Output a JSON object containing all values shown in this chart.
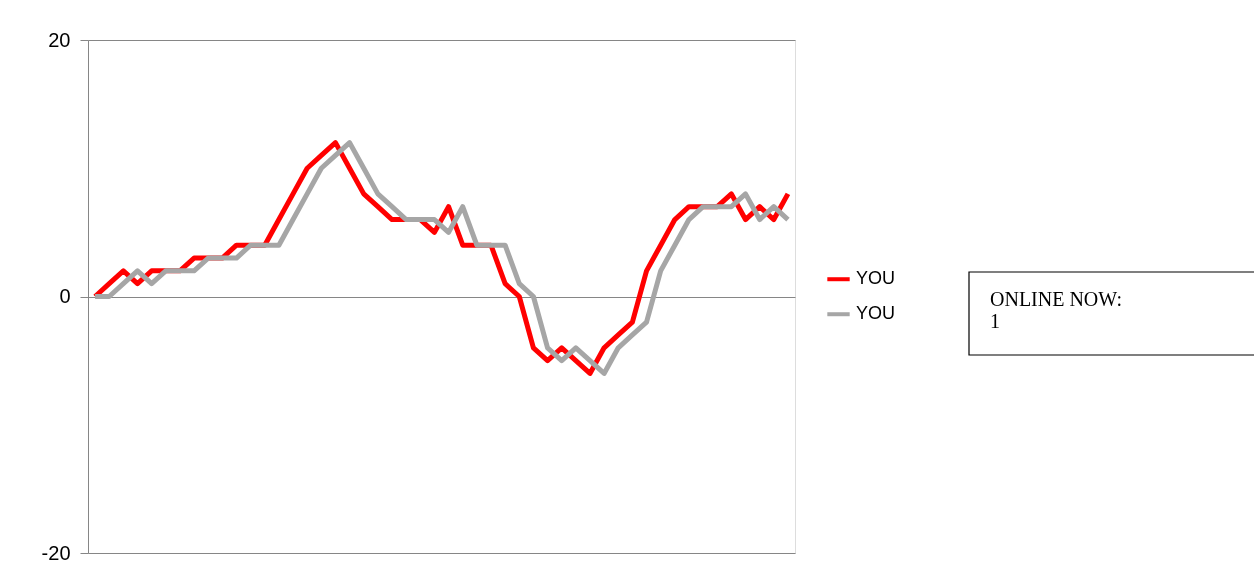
{
  "chart_data": {
    "type": "line",
    "categories": [
      null,
      null,
      null,
      null,
      null,
      null,
      null,
      null,
      null,
      null,
      null,
      null,
      null,
      null,
      null,
      null,
      null,
      null,
      null,
      null,
      null,
      null,
      null,
      null,
      null,
      null,
      null,
      null,
      null,
      null,
      null,
      null,
      null,
      null,
      null,
      null,
      null,
      null,
      null,
      null,
      null,
      null,
      null,
      null,
      null,
      null,
      null,
      null,
      null,
      null
    ],
    "series": [
      {
        "name": "YOU",
        "color": "#ff0000",
        "values": [
          0,
          1,
          2,
          1,
          2,
          2,
          2,
          3,
          3,
          3,
          4,
          4,
          4,
          6,
          8,
          10,
          11,
          12,
          10,
          8,
          7,
          6,
          6,
          6,
          5,
          7,
          4,
          4,
          4,
          1,
          0,
          -4,
          -5,
          -4,
          -5,
          -6,
          -4,
          -3,
          -2,
          2,
          4,
          6,
          7,
          7,
          7,
          8,
          6,
          7,
          6,
          8
        ]
      },
      {
        "name": "YOU",
        "color": "#a6a6a6",
        "values": [
          0,
          0,
          1,
          2,
          1,
          2,
          2,
          2,
          3,
          3,
          3,
          4,
          4,
          4,
          6,
          8,
          10,
          11,
          12,
          10,
          8,
          7,
          6,
          6,
          6,
          5,
          7,
          4,
          4,
          4,
          1,
          0,
          -4,
          -5,
          -4,
          -5,
          -6,
          -4,
          -3,
          -2,
          2,
          4,
          6,
          7,
          7,
          7,
          8,
          6,
          7,
          6
        ]
      }
    ],
    "ylim": [
      -20,
      20
    ],
    "yticks": [
      -20,
      0,
      20
    ],
    "grid": "y",
    "legend": "right",
    "marker": "none",
    "line_style": "solid",
    "annotations": [
      "ONLINE NOW:\n1"
    ]
  }
}
